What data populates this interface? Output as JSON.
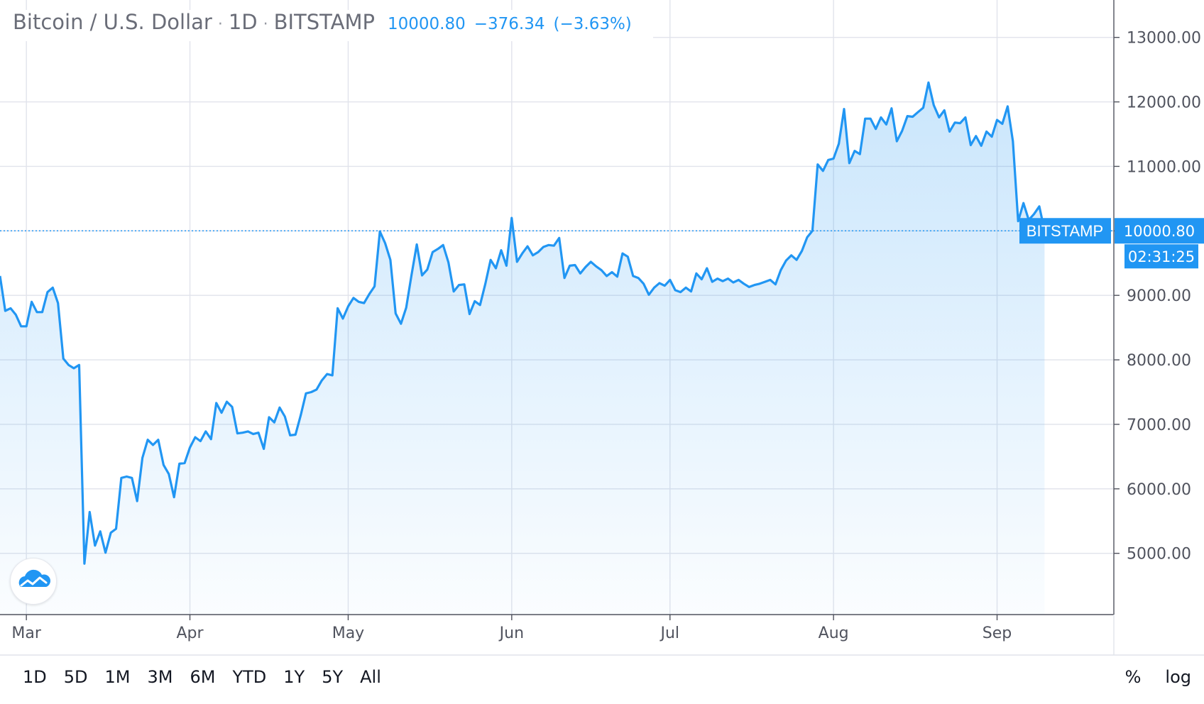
{
  "legend": {
    "symbol": "Bitcoin / U.S. Dollar",
    "interval": "1D",
    "exchange": "BITSTAMP",
    "last": "10000.80",
    "change": "−376.34",
    "change_pct": "(−3.63%)"
  },
  "price_badge": {
    "label": "BITSTAMP",
    "value": "10000.80",
    "countdown": "02:31:25"
  },
  "range_buttons": [
    "1D",
    "5D",
    "1M",
    "3M",
    "6M",
    "YTD",
    "1Y",
    "5Y",
    "All"
  ],
  "scale_buttons": {
    "percent": "%",
    "log": "log"
  },
  "colors": {
    "line": "#2196f3",
    "grid": "#e1e3eb",
    "text": "#50535e",
    "badge": "#2196f3"
  },
  "logo_icon": "tradingview-cloud-icon",
  "chart_data": {
    "type": "area",
    "title": "Bitcoin / U.S. Dollar",
    "xlabel": "",
    "ylabel": "",
    "x_ticks": [
      {
        "label": "Mar",
        "day": 0
      },
      {
        "label": "Apr",
        "day": 31
      },
      {
        "label": "May",
        "day": 61
      },
      {
        "label": "Jun",
        "day": 92
      },
      {
        "label": "Jul",
        "day": 122
      },
      {
        "label": "Aug",
        "day": 153
      },
      {
        "label": "Sep",
        "day": 184
      }
    ],
    "y_ticks": [
      "5000.00",
      "6000.00",
      "7000.00",
      "8000.00",
      "9000.00",
      "10000.00",
      "11000.00",
      "12000.00",
      "13000.00"
    ],
    "ylim": [
      4050,
      13580
    ],
    "xlim": [
      -5,
      206
    ],
    "last_value": 10000.8,
    "grid": true,
    "series": [
      {
        "values": [
          [
            -5,
            9300
          ],
          [
            -4,
            8760
          ],
          [
            -3,
            8800
          ],
          [
            -2,
            8700
          ],
          [
            -1,
            8520
          ],
          [
            0,
            8520
          ],
          [
            1,
            8900
          ],
          [
            2,
            8740
          ],
          [
            3,
            8740
          ],
          [
            4,
            9050
          ],
          [
            5,
            9120
          ],
          [
            6,
            8880
          ],
          [
            7,
            8020
          ],
          [
            8,
            7920
          ],
          [
            9,
            7870
          ],
          [
            10,
            7920
          ],
          [
            11,
            4840
          ],
          [
            12,
            5640
          ],
          [
            13,
            5120
          ],
          [
            14,
            5340
          ],
          [
            15,
            5010
          ],
          [
            16,
            5320
          ],
          [
            17,
            5380
          ],
          [
            18,
            6170
          ],
          [
            19,
            6190
          ],
          [
            20,
            6170
          ],
          [
            21,
            5810
          ],
          [
            22,
            6480
          ],
          [
            23,
            6760
          ],
          [
            24,
            6680
          ],
          [
            25,
            6760
          ],
          [
            26,
            6370
          ],
          [
            27,
            6230
          ],
          [
            28,
            5870
          ],
          [
            29,
            6390
          ],
          [
            30,
            6400
          ],
          [
            31,
            6640
          ],
          [
            32,
            6800
          ],
          [
            33,
            6740
          ],
          [
            34,
            6890
          ],
          [
            35,
            6770
          ],
          [
            36,
            7330
          ],
          [
            37,
            7180
          ],
          [
            38,
            7350
          ],
          [
            39,
            7270
          ],
          [
            40,
            6860
          ],
          [
            41,
            6870
          ],
          [
            42,
            6890
          ],
          [
            43,
            6850
          ],
          [
            44,
            6870
          ],
          [
            45,
            6620
          ],
          [
            46,
            7110
          ],
          [
            47,
            7030
          ],
          [
            48,
            7260
          ],
          [
            49,
            7120
          ],
          [
            50,
            6830
          ],
          [
            51,
            6840
          ],
          [
            52,
            7140
          ],
          [
            53,
            7480
          ],
          [
            54,
            7500
          ],
          [
            55,
            7540
          ],
          [
            56,
            7680
          ],
          [
            57,
            7780
          ],
          [
            58,
            7760
          ],
          [
            59,
            8800
          ],
          [
            60,
            8640
          ],
          [
            61,
            8830
          ],
          [
            62,
            8960
          ],
          [
            63,
            8900
          ],
          [
            64,
            8880
          ],
          [
            65,
            9020
          ],
          [
            66,
            9140
          ],
          [
            67,
            9990
          ],
          [
            68,
            9810
          ],
          [
            69,
            9550
          ],
          [
            70,
            8720
          ],
          [
            71,
            8560
          ],
          [
            72,
            8810
          ],
          [
            73,
            9310
          ],
          [
            74,
            9790
          ],
          [
            75,
            9310
          ],
          [
            76,
            9400
          ],
          [
            77,
            9670
          ],
          [
            78,
            9720
          ],
          [
            79,
            9780
          ],
          [
            80,
            9510
          ],
          [
            81,
            9060
          ],
          [
            82,
            9160
          ],
          [
            83,
            9170
          ],
          [
            84,
            8710
          ],
          [
            85,
            8910
          ],
          [
            86,
            8850
          ],
          [
            87,
            9180
          ],
          [
            88,
            9550
          ],
          [
            89,
            9420
          ],
          [
            90,
            9700
          ],
          [
            91,
            9460
          ],
          [
            92,
            10200
          ],
          [
            93,
            9520
          ],
          [
            94,
            9650
          ],
          [
            95,
            9760
          ],
          [
            96,
            9620
          ],
          [
            97,
            9670
          ],
          [
            98,
            9750
          ],
          [
            99,
            9780
          ],
          [
            100,
            9770
          ],
          [
            101,
            9890
          ],
          [
            102,
            9270
          ],
          [
            103,
            9460
          ],
          [
            104,
            9470
          ],
          [
            105,
            9340
          ],
          [
            106,
            9440
          ],
          [
            107,
            9520
          ],
          [
            108,
            9450
          ],
          [
            109,
            9390
          ],
          [
            110,
            9300
          ],
          [
            111,
            9360
          ],
          [
            112,
            9290
          ],
          [
            113,
            9650
          ],
          [
            114,
            9600
          ],
          [
            115,
            9300
          ],
          [
            116,
            9270
          ],
          [
            117,
            9180
          ],
          [
            118,
            9010
          ],
          [
            119,
            9120
          ],
          [
            120,
            9190
          ],
          [
            121,
            9150
          ],
          [
            122,
            9240
          ],
          [
            123,
            9080
          ],
          [
            124,
            9050
          ],
          [
            125,
            9120
          ],
          [
            126,
            9060
          ],
          [
            127,
            9340
          ],
          [
            128,
            9250
          ],
          [
            129,
            9420
          ],
          [
            130,
            9210
          ],
          [
            131,
            9260
          ],
          [
            132,
            9220
          ],
          [
            133,
            9260
          ],
          [
            134,
            9200
          ],
          [
            135,
            9240
          ],
          [
            136,
            9180
          ],
          [
            137,
            9130
          ],
          [
            138,
            9160
          ],
          [
            139,
            9180
          ],
          [
            140,
            9210
          ],
          [
            141,
            9240
          ],
          [
            142,
            9170
          ],
          [
            143,
            9390
          ],
          [
            144,
            9540
          ],
          [
            145,
            9620
          ],
          [
            146,
            9550
          ],
          [
            147,
            9690
          ],
          [
            148,
            9900
          ],
          [
            149,
            10000
          ],
          [
            150,
            11030
          ],
          [
            151,
            10930
          ],
          [
            152,
            11100
          ],
          [
            153,
            11120
          ],
          [
            154,
            11350
          ],
          [
            155,
            11890
          ],
          [
            156,
            11050
          ],
          [
            157,
            11240
          ],
          [
            158,
            11190
          ],
          [
            159,
            11740
          ],
          [
            160,
            11740
          ],
          [
            161,
            11580
          ],
          [
            162,
            11760
          ],
          [
            163,
            11650
          ],
          [
            164,
            11900
          ],
          [
            165,
            11390
          ],
          [
            166,
            11550
          ],
          [
            167,
            11780
          ],
          [
            168,
            11770
          ],
          [
            169,
            11840
          ],
          [
            170,
            11910
          ],
          [
            171,
            12300
          ],
          [
            172,
            11950
          ],
          [
            173,
            11760
          ],
          [
            174,
            11870
          ],
          [
            175,
            11540
          ],
          [
            176,
            11680
          ],
          [
            177,
            11670
          ],
          [
            178,
            11760
          ],
          [
            179,
            11330
          ],
          [
            180,
            11470
          ],
          [
            181,
            11320
          ],
          [
            182,
            11540
          ],
          [
            183,
            11460
          ],
          [
            184,
            11720
          ],
          [
            185,
            11660
          ],
          [
            186,
            11930
          ],
          [
            187,
            11390
          ],
          [
            188,
            10150
          ],
          [
            189,
            10430
          ],
          [
            190,
            10170
          ],
          [
            191,
            10260
          ],
          [
            192,
            10380
          ],
          [
            193,
            10000
          ]
        ]
      }
    ]
  }
}
